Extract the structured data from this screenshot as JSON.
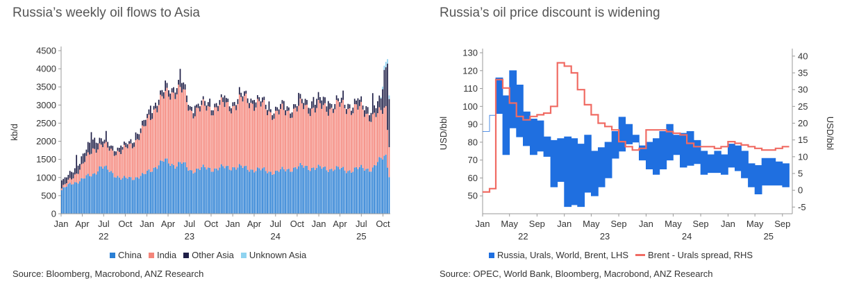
{
  "left": {
    "title": "Russia’s weekly oil flows to Asia",
    "source": "Source: Bloomberg, Macrobond, ANZ Research"
  },
  "right": {
    "title": "Russia’s oil price discount is widening",
    "source": "Source: OPEC, World Bank, Bloomberg, Macrobond, ANZ Research"
  },
  "colors": {
    "china": "#2a7fd4",
    "india": "#f4857a",
    "other_asia": "#1f1f47",
    "unknown_asia": "#8fd3f0",
    "band": "#1f6fe0",
    "spread": "#f06b63"
  },
  "chart_data": [
    {
      "type": "bar",
      "stacked": true,
      "title": "Russia’s weekly oil flows to Asia",
      "ylabel": "kb/d",
      "ylim": [
        0,
        4500
      ],
      "yticks": [
        "0",
        "500",
        "1000",
        "1500",
        "2000",
        "2500",
        "3000",
        "3500",
        "4000",
        "4500"
      ],
      "xlim": [
        "2022-01-01",
        "2025-11-01"
      ],
      "x_month_ticks": [
        {
          "date": "2022-01",
          "label": "Jan"
        },
        {
          "date": "2022-04",
          "label": "Apr"
        },
        {
          "date": "2022-07",
          "label": "Jul"
        },
        {
          "date": "2022-10",
          "label": "Oct"
        },
        {
          "date": "2023-01",
          "label": "Jan"
        },
        {
          "date": "2023-04",
          "label": "Apr"
        },
        {
          "date": "2023-07",
          "label": "Jul"
        },
        {
          "date": "2023-10",
          "label": "Oct"
        },
        {
          "date": "2024-01",
          "label": "Jan"
        },
        {
          "date": "2024-04",
          "label": "Apr"
        },
        {
          "date": "2024-07",
          "label": "Jul"
        },
        {
          "date": "2024-10",
          "label": "Oct"
        },
        {
          "date": "2025-01",
          "label": "Jan"
        },
        {
          "date": "2025-04",
          "label": "Apr"
        },
        {
          "date": "2025-07",
          "label": "Jul"
        },
        {
          "date": "2025-10",
          "label": "Oct"
        }
      ],
      "x_year_labels": [
        {
          "date": "2022-07-01",
          "label": "22"
        },
        {
          "date": "2023-07-01",
          "label": "23"
        },
        {
          "date": "2024-07-01",
          "label": "24"
        },
        {
          "date": "2025-07-01",
          "label": "25"
        }
      ],
      "anchor_dates": [
        "2022-01-01",
        "2022-02-15",
        "2022-04-01",
        "2022-05-15",
        "2022-06-15",
        "2022-08-01",
        "2022-09-15",
        "2022-11-01",
        "2022-12-15",
        "2023-02-01",
        "2023-03-15",
        "2023-05-01",
        "2023-05-25",
        "2023-07-01",
        "2023-09-01",
        "2023-11-01",
        "2024-01-01",
        "2024-03-01",
        "2024-05-01",
        "2024-07-01",
        "2024-09-01",
        "2024-11-01",
        "2025-01-01",
        "2025-03-01",
        "2025-05-01",
        "2025-07-01",
        "2025-08-15",
        "2025-09-15",
        "2025-10-10",
        "2025-10-25"
      ],
      "series": [
        {
          "name": "China",
          "anchor_values": [
            650,
            850,
            950,
            1100,
            1300,
            1150,
            950,
            1000,
            1050,
            1300,
            1450,
            1350,
            1400,
            1200,
            1250,
            1250,
            1300,
            1250,
            1200,
            1150,
            1250,
            1300,
            1250,
            1250,
            1200,
            1250,
            1250,
            1450,
            1650,
            1100
          ]
        },
        {
          "name": "India",
          "anchor_values": [
            50,
            150,
            400,
            700,
            600,
            600,
            750,
            950,
            1250,
            1650,
            1750,
            2100,
            2000,
            1650,
            1650,
            1700,
            1700,
            1900,
            1750,
            1600,
            1600,
            1650,
            1650,
            1700,
            1750,
            1600,
            1450,
            1250,
            1350,
            900
          ]
        },
        {
          "name": "Other Asia",
          "anchor_values": [
            100,
            120,
            150,
            200,
            100,
            80,
            60,
            80,
            100,
            100,
            100,
            100,
            150,
            80,
            80,
            80,
            80,
            80,
            80,
            80,
            80,
            100,
            150,
            80,
            80,
            100,
            150,
            200,
            700,
            800
          ]
        },
        {
          "name": "Unknown Asia",
          "anchor_values": [
            0,
            0,
            0,
            0,
            0,
            0,
            0,
            0,
            0,
            0,
            0,
            0,
            0,
            0,
            0,
            0,
            0,
            0,
            0,
            0,
            0,
            0,
            0,
            0,
            0,
            0,
            0,
            0,
            150,
            100
          ]
        }
      ]
    },
    {
      "type": "area",
      "title": "Russia’s oil price discount is widening",
      "ylabel_left": "USD/bbl",
      "ylabel_right": "USD/bbl",
      "ylim_left": [
        40,
        130
      ],
      "yticks_left": [
        "50",
        "60",
        "70",
        "80",
        "90",
        "100",
        "110",
        "120",
        "130"
      ],
      "ylim_right": [
        -7,
        41
      ],
      "yticks_right": [
        "-5",
        "0",
        "5",
        "10",
        "15",
        "20",
        "25",
        "30",
        "35",
        "40"
      ],
      "xlim": [
        "2022-01-01",
        "2025-10-15"
      ],
      "x_month_ticks": [
        {
          "date": "2022-01",
          "label": "Jan"
        },
        {
          "date": "2022-05",
          "label": "May"
        },
        {
          "date": "2022-09",
          "label": "Sep"
        },
        {
          "date": "2023-01",
          "label": "Jan"
        },
        {
          "date": "2023-05",
          "label": "May"
        },
        {
          "date": "2023-09",
          "label": "Sep"
        },
        {
          "date": "2024-01",
          "label": "Jan"
        },
        {
          "date": "2024-05",
          "label": "May"
        },
        {
          "date": "2024-09",
          "label": "Sep"
        },
        {
          "date": "2025-01",
          "label": "Jan"
        },
        {
          "date": "2025-05",
          "label": "May"
        },
        {
          "date": "2025-09",
          "label": "Sep"
        }
      ],
      "x_year_labels": [
        {
          "date": "2022-07-01",
          "label": "22"
        },
        {
          "date": "2023-07-01",
          "label": "23"
        },
        {
          "date": "2024-07-01",
          "label": "24"
        },
        {
          "date": "2025-07-01",
          "label": "25"
        }
      ],
      "series": [
        {
          "name": "Russia, Urals, World, Brent, LHS",
          "axis": "left",
          "x": [
            "2022-01",
            "2022-02",
            "2022-03",
            "2022-04",
            "2022-05",
            "2022-06",
            "2022-07",
            "2022-08",
            "2022-09",
            "2022-10",
            "2022-11",
            "2022-12",
            "2023-01",
            "2023-02",
            "2023-03",
            "2023-04",
            "2023-05",
            "2023-06",
            "2023-07",
            "2023-08",
            "2023-09",
            "2023-10",
            "2023-11",
            "2023-12",
            "2024-01",
            "2024-02",
            "2024-03",
            "2024-04",
            "2024-05",
            "2024-06",
            "2024-07",
            "2024-08",
            "2024-09",
            "2024-10",
            "2024-11",
            "2024-12",
            "2025-01",
            "2025-02",
            "2025-03",
            "2025-04",
            "2025-05",
            "2025-06",
            "2025-07",
            "2025-08",
            "2025-09"
          ],
          "low": [
            86,
            95,
            96,
            73,
            88,
            83,
            78,
            73,
            75,
            72,
            55,
            58,
            44,
            45,
            44,
            52,
            50,
            55,
            60,
            71,
            75,
            79,
            80,
            70,
            65,
            62,
            65,
            70,
            73,
            66,
            67,
            68,
            62,
            63,
            63,
            62,
            66,
            64,
            60,
            55,
            51,
            56,
            56,
            56,
            55
          ],
          "high": [
            86,
            95,
            116,
            106,
            120,
            112,
            97,
            93,
            92,
            83,
            81,
            82,
            83,
            82,
            79,
            84,
            75,
            77,
            80,
            86,
            94,
            90,
            84,
            78,
            80,
            82,
            86,
            90,
            84,
            85,
            86,
            81,
            75,
            73,
            75,
            73,
            79,
            78,
            75,
            68,
            67,
            71,
            71,
            69,
            68
          ]
        },
        {
          "name": "Brent - Urals spread, RHS",
          "axis": "right",
          "x": [
            "2022-01",
            "2022-02",
            "2022-03",
            "2022-04",
            "2022-05",
            "2022-06",
            "2022-07",
            "2022-08",
            "2022-09",
            "2022-10",
            "2022-11",
            "2022-12",
            "2023-01",
            "2023-02",
            "2023-03",
            "2023-04",
            "2023-05",
            "2023-06",
            "2023-07",
            "2023-08",
            "2023-09",
            "2023-10",
            "2023-11",
            "2023-12",
            "2024-01",
            "2024-02",
            "2024-03",
            "2024-04",
            "2024-05",
            "2024-06",
            "2024-07",
            "2024-08",
            "2024-09",
            "2024-10",
            "2024-11",
            "2024-12",
            "2025-01",
            "2025-02",
            "2025-03",
            "2025-04",
            "2025-05",
            "2025-06",
            "2025-07",
            "2025-08",
            "2025-09"
          ],
          "values": [
            -0.5,
            0.5,
            33,
            30.5,
            26,
            22,
            21,
            22,
            22.5,
            23,
            25,
            38,
            37,
            35,
            30,
            25.5,
            22.5,
            20,
            19,
            18,
            14.5,
            13,
            12,
            12.5,
            18,
            18,
            18,
            17.5,
            17,
            16.5,
            14,
            13,
            13,
            13,
            12.5,
            13,
            14.5,
            14,
            13.5,
            13,
            12.5,
            12,
            12,
            12.5,
            13
          ]
        }
      ]
    }
  ]
}
